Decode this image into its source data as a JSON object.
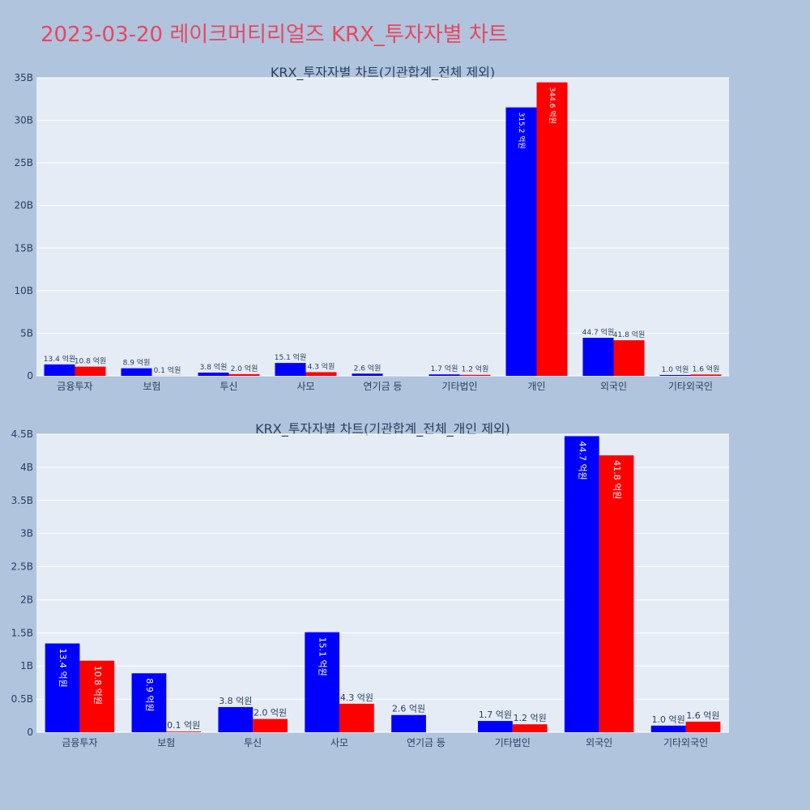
{
  "title": "2023-03-20 레이크머티리얼즈 KRX_투자자별 차트",
  "colors": {
    "title": "#e8475f",
    "page_bg": "#b0c4de",
    "plot_bg": "#e5ecf6",
    "series_1": "#0000ff",
    "series_2": "#ff0000",
    "text": "#2a3f5f"
  },
  "chart_data": [
    {
      "type": "bar",
      "title": "KRX_투자자별 차트(기관합계_전체 제외)",
      "categories": [
        "금융투자",
        "보험",
        "투신",
        "사모",
        "연기금 등",
        "기타법인",
        "개인",
        "외국인",
        "기타외국인"
      ],
      "ylim": [
        0,
        35
      ],
      "yticks": [
        0,
        5,
        10,
        15,
        20,
        25,
        30,
        35
      ],
      "yticklabels": [
        "0",
        "5B",
        "10B",
        "15B",
        "20B",
        "25B",
        "30B",
        "35B"
      ],
      "series": [
        {
          "values": [
            1.34,
            0.89,
            0.38,
            1.51,
            0.26,
            0.17,
            31.52,
            4.47,
            0.1
          ],
          "labels": [
            "13.4 억원",
            "8.9 억원",
            "3.8 억원",
            "15.1 억원",
            "2.6 억원",
            "1.7 억원",
            "315.2 억원",
            "44.7 억원",
            "1.0 억원"
          ]
        },
        {
          "values": [
            1.08,
            0.01,
            0.2,
            0.43,
            0,
            0.12,
            34.46,
            4.18,
            0.16
          ],
          "labels": [
            "10.8 억원",
            "0.1 억원",
            "2.0 억원",
            "4.3 억원",
            "",
            "1.2 억원",
            "344.6 억원",
            "41.8 억원",
            "1.6 억원"
          ]
        }
      ],
      "grid": true,
      "legend": "none"
    },
    {
      "type": "bar",
      "title": "KRX_투자자별 차트(기관합계_전체_개인 제외)",
      "categories": [
        "금융투자",
        "보험",
        "투신",
        "사모",
        "연기금 등",
        "기타법인",
        "외국인",
        "기타외국인"
      ],
      "ylim": [
        0,
        4.5
      ],
      "yticks": [
        0,
        0.5,
        1,
        1.5,
        2,
        2.5,
        3,
        3.5,
        4,
        4.5
      ],
      "yticklabels": [
        "0",
        "0.5B",
        "1B",
        "1.5B",
        "2B",
        "2.5B",
        "3B",
        "3.5B",
        "4B",
        "4.5B"
      ],
      "series": [
        {
          "values": [
            1.34,
            0.89,
            0.38,
            1.51,
            0.26,
            0.17,
            4.47,
            0.1
          ],
          "labels": [
            "13.4 억원",
            "8.9 억원",
            "3.8 억원",
            "15.1 억원",
            "2.6 억원",
            "1.7 억원",
            "44.7 억원",
            "1.0 억원"
          ]
        },
        {
          "values": [
            1.08,
            0.01,
            0.2,
            0.43,
            0,
            0.12,
            4.18,
            0.16
          ],
          "labels": [
            "10.8 억원",
            "0.1 억원",
            "2.0 억원",
            "4.3 억원",
            "",
            "1.2 억원",
            "41.8 억원",
            "1.6 억원"
          ]
        }
      ],
      "grid": true,
      "legend": "none"
    }
  ]
}
